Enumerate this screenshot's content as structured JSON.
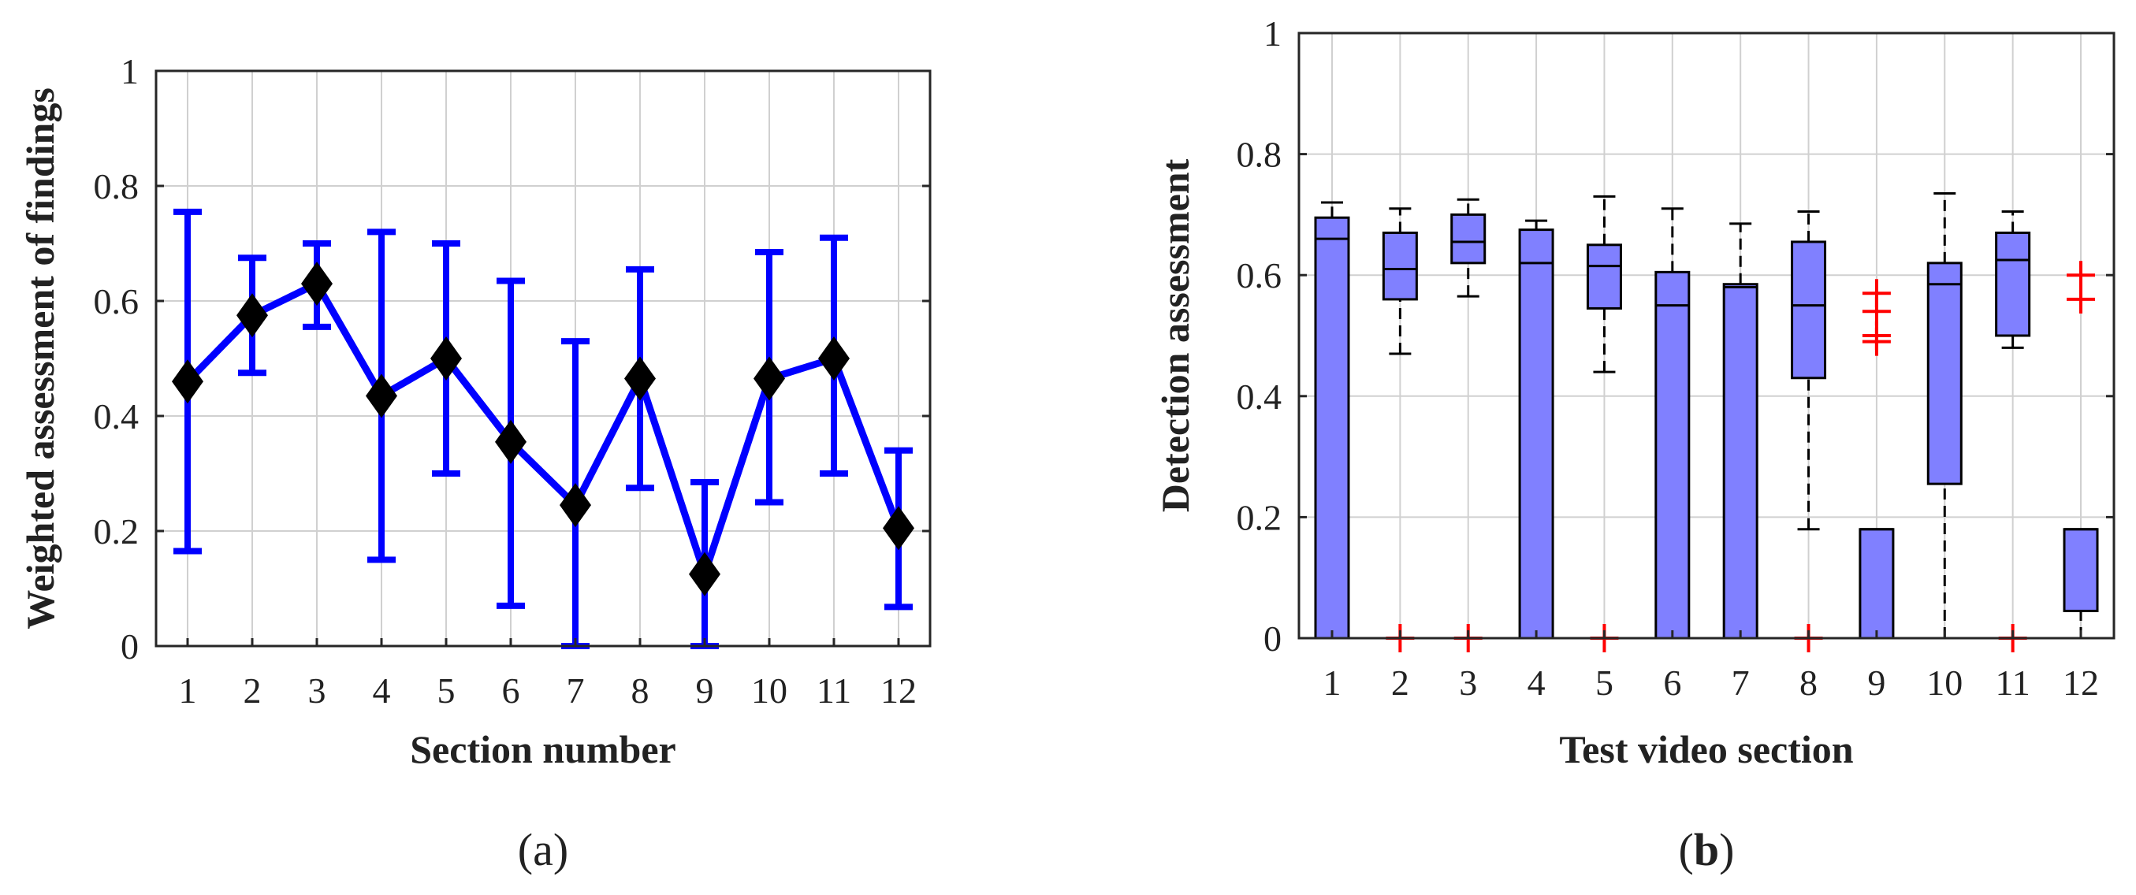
{
  "chart_data": [
    {
      "type": "line",
      "panel_label": "a",
      "xlabel": "Section number",
      "ylabel": "Weighted assessment of findings",
      "categories": [
        "1",
        "2",
        "3",
        "4",
        "5",
        "6",
        "7",
        "8",
        "9",
        "10",
        "11",
        "12"
      ],
      "ylim": [
        0,
        1
      ],
      "yticks": [
        "0",
        "0.2",
        "0.4",
        "0.6",
        "0.8",
        "1"
      ],
      "grid": true,
      "line_color": "#0000ff",
      "marker_color": "#000000",
      "marker": "diamond",
      "series": [
        {
          "values": [
            0.46,
            0.575,
            0.63,
            0.435,
            0.5,
            0.355,
            0.245,
            0.465,
            0.125,
            0.465,
            0.5,
            0.205
          ],
          "error_low": [
            0.165,
            0.475,
            0.555,
            0.15,
            0.3,
            0.07,
            0.0,
            0.275,
            0.0,
            0.25,
            0.3,
            0.068
          ],
          "error_high": [
            0.755,
            0.675,
            0.7,
            0.72,
            0.7,
            0.635,
            0.53,
            0.655,
            0.285,
            0.685,
            0.71,
            0.34
          ]
        }
      ]
    },
    {
      "type": "box",
      "panel_label": "b",
      "xlabel": "Test video section",
      "ylabel": "Detection assessment",
      "categories": [
        "1",
        "2",
        "3",
        "4",
        "5",
        "6",
        "7",
        "8",
        "9",
        "10",
        "11",
        "12"
      ],
      "ylim": [
        0,
        1
      ],
      "yticks": [
        "0",
        "0.2",
        "0.4",
        "0.6",
        "0.8",
        "1"
      ],
      "grid": true,
      "box_color": "#8080ff",
      "outlier_color": "#ff0000",
      "boxes": [
        {
          "whisker_low": 0.0,
          "q1": 0.0,
          "median": 0.66,
          "q3": 0.695,
          "whisker_high": 0.72,
          "outliers": []
        },
        {
          "whisker_low": 0.47,
          "q1": 0.56,
          "median": 0.61,
          "q3": 0.67,
          "whisker_high": 0.71,
          "outliers": [
            0
          ]
        },
        {
          "whisker_low": 0.565,
          "q1": 0.62,
          "median": 0.655,
          "q3": 0.7,
          "whisker_high": 0.725,
          "outliers": [
            0
          ]
        },
        {
          "whisker_low": 0.0,
          "q1": 0.0,
          "median": 0.62,
          "q3": 0.675,
          "whisker_high": 0.69,
          "outliers": []
        },
        {
          "whisker_low": 0.44,
          "q1": 0.545,
          "median": 0.615,
          "q3": 0.65,
          "whisker_high": 0.73,
          "outliers": [
            0
          ]
        },
        {
          "whisker_low": 0.0,
          "q1": 0.0,
          "median": 0.55,
          "q3": 0.605,
          "whisker_high": 0.71,
          "outliers": []
        },
        {
          "whisker_low": 0.0,
          "q1": 0.0,
          "median": 0.58,
          "q3": 0.585,
          "whisker_high": 0.685,
          "outliers": []
        },
        {
          "whisker_low": 0.18,
          "q1": 0.43,
          "median": 0.55,
          "q3": 0.655,
          "whisker_high": 0.705,
          "outliers": [
            0
          ]
        },
        {
          "whisker_low": 0.0,
          "q1": 0.0,
          "median": 0.18,
          "q3": 0.18,
          "whisker_high": 0.18,
          "outliers": [
            0.49,
            0.5,
            0.54,
            0.57
          ]
        },
        {
          "whisker_low": 0.0,
          "q1": 0.255,
          "median": 0.585,
          "q3": 0.62,
          "whisker_high": 0.735,
          "outliers": []
        },
        {
          "whisker_low": 0.48,
          "q1": 0.5,
          "median": 0.625,
          "q3": 0.67,
          "whisker_high": 0.705,
          "outliers": [
            0
          ]
        },
        {
          "whisker_low": 0.0,
          "q1": 0.045,
          "median": 0.18,
          "q3": 0.18,
          "whisker_high": 0.18,
          "outliers": [
            0.56,
            0.6
          ]
        }
      ]
    }
  ]
}
